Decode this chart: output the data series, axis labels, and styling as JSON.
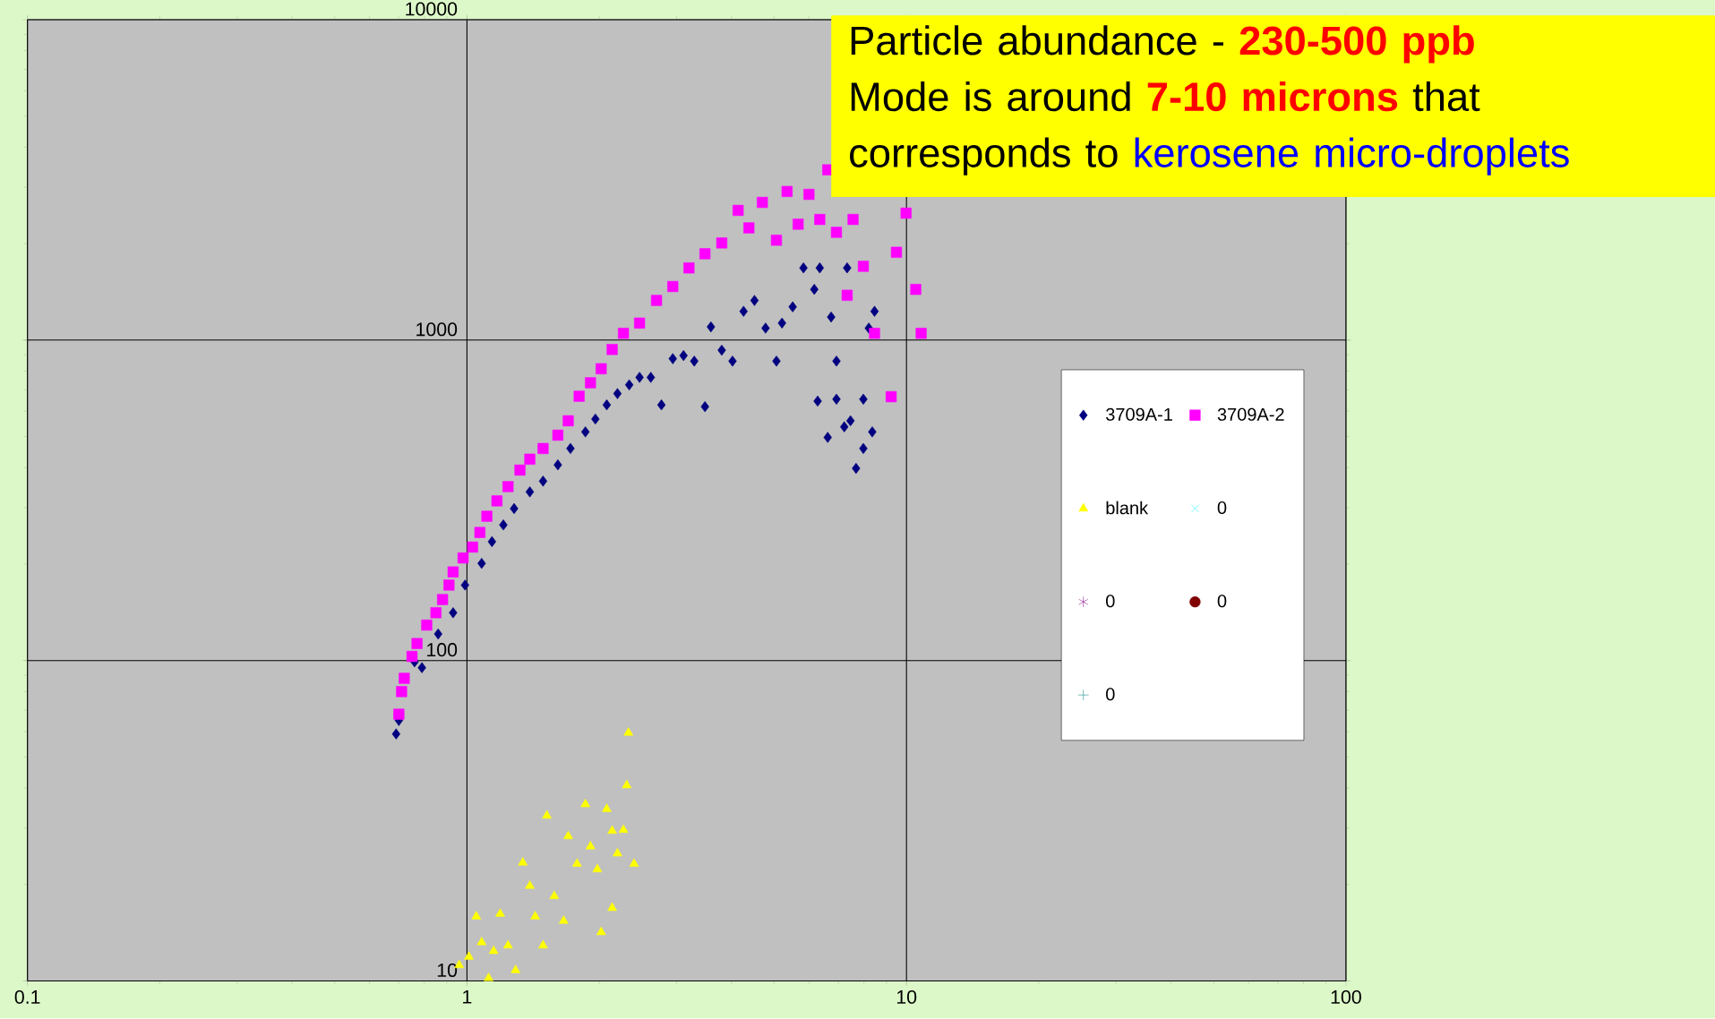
{
  "chart_data": {
    "type": "scatter",
    "log": "xy",
    "grid": true,
    "legend": "right",
    "xlim": [
      0.1,
      100
    ],
    "ylim": [
      10,
      10000
    ],
    "xticks": [
      0.1,
      1,
      10,
      100
    ],
    "yticks": [
      10,
      100,
      1000,
      10000
    ],
    "annotations": [
      "Particle abundance -",
      "**230-500 ppb**",
      "Mode is around",
      "**7-10 microns**",
      "that",
      "corresponds to",
      "kerosene micro-droplets"
    ],
    "series": [
      {
        "name": "3709A-1",
        "color": "#000080",
        "marker": "diamond",
        "x": [
          0.69,
          0.7,
          0.76,
          0.79,
          0.86,
          0.93,
          0.99,
          1.08,
          1.14,
          1.21,
          1.28,
          1.39,
          1.49,
          1.61,
          1.72,
          1.86,
          1.96,
          2.08,
          2.2,
          2.34,
          2.47,
          2.62,
          2.77,
          2.94,
          3.11,
          3.29,
          3.48,
          3.59,
          3.8,
          4.02,
          4.26,
          4.51,
          4.78,
          5.06,
          5.21,
          5.51,
          5.83,
          6.17,
          6.28,
          6.35,
          6.62,
          6.74,
          6.93,
          6.93,
          7.22,
          7.33,
          7.46,
          7.68,
          7.98,
          7.98,
          8.21,
          8.36,
          8.46
        ],
        "values": [
          59,
          65,
          99,
          95,
          121,
          141,
          172,
          201,
          235,
          265,
          298,
          336,
          363,
          408,
          459,
          517,
          567,
          628,
          681,
          725,
          765,
          765,
          628,
          875,
          895,
          860,
          620,
          1100,
          930,
          860,
          1230,
          1330,
          1090,
          860,
          1130,
          1270,
          1680,
          1440,
          645,
          1680,
          497,
          1180,
          860,
          654,
          536,
          1680,
          560,
          398,
          459,
          654,
          1090,
          517,
          1230
        ]
      },
      {
        "name": "3709A-2",
        "color": "#ff00ff",
        "marker": "square",
        "x": [
          0.7,
          0.71,
          0.72,
          0.75,
          0.77,
          0.81,
          0.85,
          0.88,
          0.91,
          0.93,
          0.98,
          1.03,
          1.07,
          1.11,
          1.17,
          1.24,
          1.32,
          1.39,
          1.49,
          1.61,
          1.7,
          1.8,
          1.91,
          2.02,
          2.14,
          2.27,
          2.47,
          2.7,
          2.94,
          3.2,
          3.48,
          3.8,
          4.14,
          4.38,
          4.7,
          5.06,
          5.35,
          5.67,
          6.0,
          6.35,
          6.62,
          6.93,
          7.33,
          7.56,
          7.98,
          8.46,
          9.23,
          9.49,
          9.98,
          10.5,
          10.8
        ],
        "values": [
          68,
          80,
          88,
          103,
          113,
          129,
          141,
          155,
          172,
          189,
          209,
          226,
          251,
          282,
          315,
          349,
          393,
          425,
          459,
          505,
          560,
          668,
          736,
          814,
          935,
          1050,
          1130,
          1330,
          1470,
          1680,
          1860,
          2010,
          2540,
          2240,
          2690,
          2050,
          2910,
          2300,
          2850,
          2380,
          3400,
          2170,
          1380,
          2380,
          1700,
          1050,
          666,
          1880,
          2490,
          1440,
          1050
        ]
      },
      {
        "name": "blank",
        "color": "#ffff00",
        "marker": "triangle",
        "x": [
          0.96,
          1.01,
          1.05,
          1.08,
          1.12,
          1.15,
          1.19,
          1.24,
          1.29,
          1.34,
          1.39,
          1.43,
          1.49,
          1.52,
          1.58,
          1.66,
          1.7,
          1.78,
          1.86,
          1.91,
          1.98,
          2.02,
          2.08,
          2.14,
          2.14,
          2.2,
          2.27,
          2.31,
          2.33,
          2.4
        ],
        "values": [
          11.2,
          11.9,
          15.9,
          13.2,
          10.2,
          12.4,
          16.2,
          12.9,
          10.8,
          23.4,
          19.8,
          15.9,
          12.9,
          32.8,
          18.4,
          15.4,
          28.3,
          23.2,
          35.6,
          26.3,
          22.3,
          14.2,
          34.4,
          16.9,
          29.4,
          25.0,
          29.6,
          40.8,
          59.5,
          23.2
        ]
      },
      {
        "name": "0",
        "color": "#00ffff",
        "marker": "cross"
      },
      {
        "name": "0",
        "color": "#800080",
        "marker": "star"
      },
      {
        "name": "0",
        "color": "#800000",
        "marker": "circle"
      },
      {
        "name": "0",
        "color": "#008080",
        "marker": "plus"
      }
    ]
  }
}
